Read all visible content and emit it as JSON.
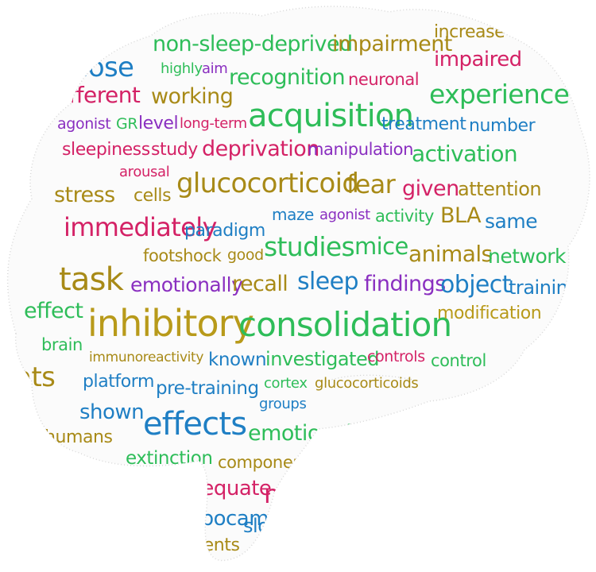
{
  "words": [
    "non-sleep-deprived",
    "impairment",
    "increase",
    "impaired",
    "dose",
    "highly",
    "aim",
    "recognition",
    "neuronal",
    "different",
    "working",
    "experience",
    "agonist",
    "GR",
    "level",
    "long-term",
    "acquisition",
    "treatment",
    "number",
    "sleepiness",
    "study",
    "deprivation",
    "manipulation",
    "activation",
    "arousal",
    "glucocorticoid",
    "fear",
    "given",
    "attention",
    "stress",
    "cells",
    "maze",
    "agonist",
    "activity",
    "BLA",
    "same",
    "immediately",
    "paradigm",
    "footshock",
    "good",
    "studies",
    "mice",
    "animals",
    "network",
    "task",
    "emotionally",
    "recall",
    "sleep",
    "findings",
    "object",
    "training",
    "effect",
    "inhibitory",
    "consolidation",
    "modification",
    "brain",
    "immunoreactivity",
    "known",
    "investigated",
    "controls",
    "control",
    "rats",
    "platform",
    "pre-training",
    "cortex",
    "glucocorticoids",
    "shown",
    "groups",
    "effects",
    "emotional",
    "humans",
    "extinction",
    "component",
    "adequate",
    "memory",
    "hippocampal",
    "slow",
    "events"
  ]
}
